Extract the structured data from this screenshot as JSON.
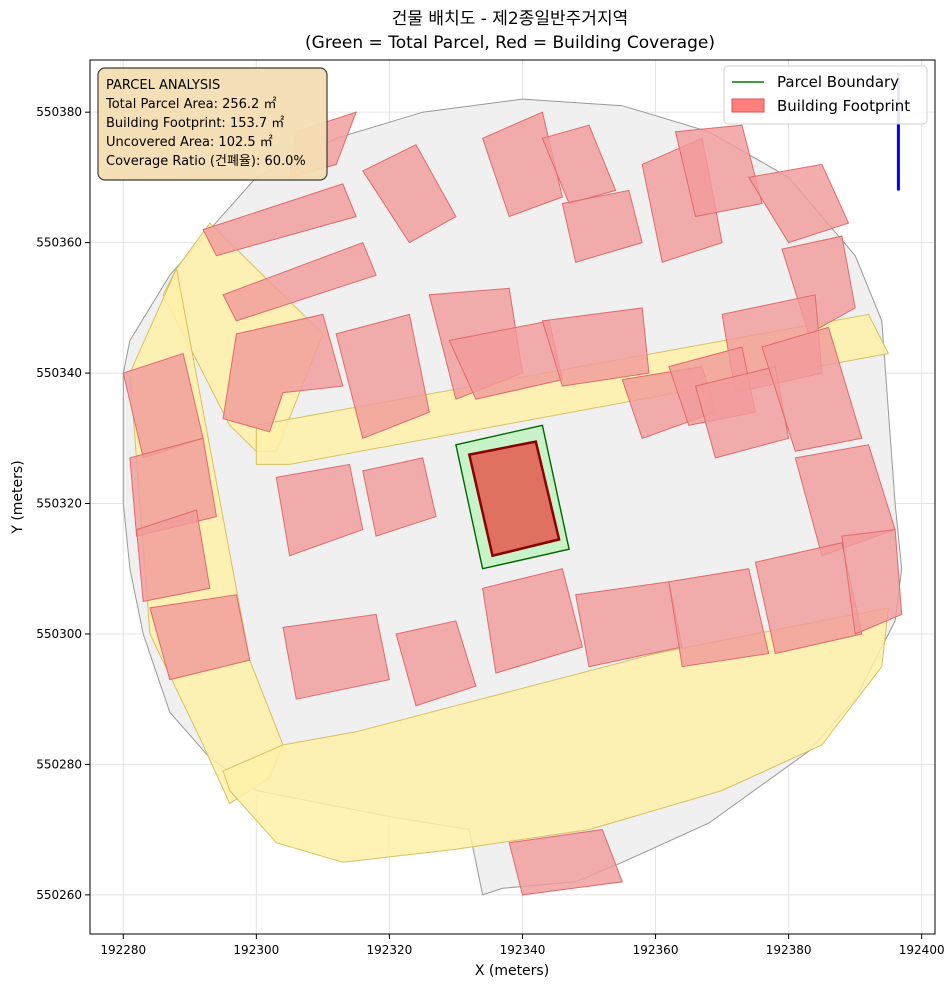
{
  "chart_data": {
    "type": "map",
    "title_line1": "건물 배치도 - 제2종일반주거지역",
    "title_line2": "(Green = Total Parcel, Red = Building Coverage)",
    "xlabel": "X (meters)",
    "ylabel": "Y (meters)",
    "xlim": [
      192275,
      192402
    ],
    "ylim": [
      550254,
      550388
    ],
    "xticks": [
      192280,
      192300,
      192320,
      192340,
      192360,
      192380,
      192400
    ],
    "yticks": [
      550260,
      550280,
      550300,
      550320,
      550340,
      550360,
      550380
    ],
    "grid": true,
    "legend": {
      "position": "top-right",
      "entries": [
        {
          "label": "Parcel Boundary",
          "kind": "line",
          "color": "#008000"
        },
        {
          "label": "Building Footprint",
          "kind": "patch",
          "color": "#ff7f7f"
        }
      ]
    },
    "info_box": {
      "heading": "PARCEL ANALYSIS",
      "lines": [
        "Total Parcel Area: 256.2 ㎡",
        "Building Footprint: 153.7 ㎡",
        "Uncovered Area: 102.5 ㎡",
        "Coverage Ratio (건폐율): 60.0%"
      ]
    },
    "target_parcel": [
      [
        192330,
        550329
      ],
      [
        192343,
        550332
      ],
      [
        192347,
        550313
      ],
      [
        192334,
        550310
      ]
    ],
    "target_building": [
      [
        192332,
        550327.5
      ],
      [
        192342,
        550329.5
      ],
      [
        192345.5,
        550314.5
      ],
      [
        192335.5,
        550312
      ]
    ],
    "north_arrow": [
      [
        192396.5,
        550368
      ],
      [
        192396.5,
        550386
      ]
    ],
    "study_area_outline": [
      [
        192281,
        550345
      ],
      [
        192287,
        550355
      ],
      [
        192293,
        550362
      ],
      [
        192300,
        550370
      ],
      [
        192312,
        550376
      ],
      [
        192325,
        550380
      ],
      [
        192340,
        550382
      ],
      [
        192355,
        550381
      ],
      [
        192368,
        550377
      ],
      [
        192380,
        550370
      ],
      [
        192390,
        550358
      ],
      [
        192394,
        550348
      ],
      [
        192396,
        550320
      ],
      [
        192397,
        550310
      ],
      [
        192396,
        550302
      ],
      [
        192390,
        550290
      ],
      [
        192383,
        550282
      ],
      [
        192368,
        550271
      ],
      [
        192355,
        550265
      ],
      [
        192348,
        550262
      ],
      [
        192337,
        550261
      ],
      [
        192334,
        550260
      ],
      [
        192332,
        550270
      ],
      [
        192320,
        550272
      ],
      [
        192310,
        550274
      ],
      [
        192300,
        550276
      ],
      [
        192293,
        550281
      ],
      [
        192287,
        550288
      ],
      [
        192283,
        550300
      ],
      [
        192281,
        550310
      ],
      [
        192280,
        550320
      ],
      [
        192280,
        550330
      ],
      [
        192280,
        550340
      ]
    ],
    "roads": [
      [
        [
          192288,
          550356
        ],
        [
          192293,
          550363
        ],
        [
          192310,
          550346
        ],
        [
          192303,
          550328
        ],
        [
          192300,
          550328
        ],
        [
          192296,
          550332
        ],
        [
          192286,
          550352
        ]
      ],
      [
        [
          192300,
          550332
        ],
        [
          192392,
          550349
        ],
        [
          192395,
          550343
        ],
        [
          192305,
          550326
        ],
        [
          192300,
          550326
        ]
      ],
      [
        [
          192288,
          550356
        ],
        [
          192299,
          550296
        ],
        [
          192304,
          550283
        ],
        [
          192302,
          550278
        ],
        [
          192296,
          550274
        ],
        [
          192292,
          550283
        ],
        [
          192284,
          550300
        ],
        [
          192281,
          550340
        ]
      ],
      [
        [
          192295,
          550279
        ],
        [
          192304,
          550283
        ],
        [
          192315,
          550285
        ],
        [
          192330,
          550289
        ],
        [
          192360,
          550297
        ],
        [
          192380,
          550301
        ],
        [
          192395,
          550304
        ],
        [
          192394,
          550295
        ],
        [
          192385,
          550283
        ],
        [
          192370,
          550276
        ],
        [
          192350,
          550270
        ],
        [
          192330,
          550267
        ],
        [
          192313,
          550265
        ],
        [
          192303,
          550268
        ],
        [
          192296,
          550276
        ]
      ]
    ],
    "buildings": [
      [
        [
          192292,
          550362
        ],
        [
          192313,
          550369
        ],
        [
          192315,
          550364
        ],
        [
          192294,
          550358
        ]
      ],
      [
        [
          192295,
          550352
        ],
        [
          192316,
          550360
        ],
        [
          192318,
          550355
        ],
        [
          192297,
          550348
        ]
      ],
      [
        [
          192297,
          550346
        ],
        [
          192310,
          550349
        ],
        [
          192313,
          550338
        ],
        [
          192304,
          550337
        ],
        [
          192302,
          550331
        ],
        [
          192295,
          550333
        ]
      ],
      [
        [
          192312,
          550346
        ],
        [
          192323,
          550349
        ],
        [
          192326,
          550334
        ],
        [
          192316,
          550330
        ]
      ],
      [
        [
          192326,
          550352
        ],
        [
          192338,
          550353
        ],
        [
          192340,
          550340
        ],
        [
          192330,
          550336
        ]
      ],
      [
        [
          192316,
          550371
        ],
        [
          192324,
          550375
        ],
        [
          192330,
          550364
        ],
        [
          192323,
          550360
        ]
      ],
      [
        [
          192306,
          550377
        ],
        [
          192315,
          550380
        ],
        [
          192312,
          550372
        ],
        [
          192305,
          550370
        ]
      ],
      [
        [
          192334,
          550376
        ],
        [
          192343,
          550380
        ],
        [
          192346,
          550367
        ],
        [
          192338,
          550364
        ]
      ],
      [
        [
          192343,
          550376
        ],
        [
          192350,
          550378
        ],
        [
          192354,
          550368
        ],
        [
          192347,
          550366
        ]
      ],
      [
        [
          192346,
          550366
        ],
        [
          192356,
          550368
        ],
        [
          192358,
          550360
        ],
        [
          192348,
          550357
        ]
      ],
      [
        [
          192329,
          550345
        ],
        [
          192344,
          550348
        ],
        [
          192346,
          550339
        ],
        [
          192333,
          550336
        ]
      ],
      [
        [
          192343,
          550348
        ],
        [
          192358,
          550350
        ],
        [
          192359,
          550340
        ],
        [
          192346,
          550338
        ]
      ],
      [
        [
          192358,
          550372
        ],
        [
          192367,
          550376
        ],
        [
          192370,
          550360
        ],
        [
          192361,
          550357
        ]
      ],
      [
        [
          192363,
          550377
        ],
        [
          192373,
          550378
        ],
        [
          192376,
          550366
        ],
        [
          192366,
          550364
        ]
      ],
      [
        [
          192374,
          550370
        ],
        [
          192385,
          550372
        ],
        [
          192389,
          550363
        ],
        [
          192380,
          550360
        ]
      ],
      [
        [
          192379,
          550359
        ],
        [
          192388,
          550361
        ],
        [
          192390,
          550350
        ],
        [
          192383,
          550346
        ]
      ],
      [
        [
          192370,
          550349
        ],
        [
          192384,
          550352
        ],
        [
          192385,
          550340
        ],
        [
          192372,
          550337
        ]
      ],
      [
        [
          192355,
          550339
        ],
        [
          192367,
          550341
        ],
        [
          192369,
          550334
        ],
        [
          192358,
          550330
        ]
      ],
      [
        [
          192362,
          550341
        ],
        [
          192373,
          550344
        ],
        [
          192375,
          550334
        ],
        [
          192365,
          550332
        ]
      ],
      [
        [
          192366,
          550338
        ],
        [
          192378,
          550341
        ],
        [
          192380,
          550330
        ],
        [
          192369,
          550327
        ]
      ],
      [
        [
          192376,
          550344
        ],
        [
          192386,
          550347
        ],
        [
          192391,
          550330
        ],
        [
          192381,
          550328
        ]
      ],
      [
        [
          192381,
          550327
        ],
        [
          192392,
          550329
        ],
        [
          192396,
          550316
        ],
        [
          192385,
          550312
        ]
      ],
      [
        [
          192280,
          550340
        ],
        [
          192289,
          550343
        ],
        [
          192292,
          550330
        ],
        [
          192283,
          550327
        ]
      ],
      [
        [
          192281,
          550327
        ],
        [
          192292,
          550330
        ],
        [
          192294,
          550318
        ],
        [
          192282,
          550315
        ]
      ],
      [
        [
          192282,
          550316
        ],
        [
          192291,
          550319
        ],
        [
          192293,
          550307
        ],
        [
          192283,
          550305
        ]
      ],
      [
        [
          192284,
          550304
        ],
        [
          192297,
          550306
        ],
        [
          192299,
          550296
        ],
        [
          192287,
          550293
        ]
      ],
      [
        [
          192303,
          550324
        ],
        [
          192314,
          550326
        ],
        [
          192316,
          550316
        ],
        [
          192305,
          550312
        ]
      ],
      [
        [
          192316,
          550325
        ],
        [
          192325,
          550327
        ],
        [
          192327,
          550318
        ],
        [
          192318,
          550315
        ]
      ],
      [
        [
          192304,
          550301
        ],
        [
          192318,
          550303
        ],
        [
          192320,
          550293
        ],
        [
          192306,
          550290
        ]
      ],
      [
        [
          192321,
          550300
        ],
        [
          192330,
          550302
        ],
        [
          192333,
          550292
        ],
        [
          192324,
          550289
        ]
      ],
      [
        [
          192334,
          550307
        ],
        [
          192346,
          550310
        ],
        [
          192349,
          550298
        ],
        [
          192336,
          550294
        ]
      ],
      [
        [
          192348,
          550306
        ],
        [
          192362,
          550308
        ],
        [
          192364,
          550298
        ],
        [
          192350,
          550295
        ]
      ],
      [
        [
          192362,
          550308
        ],
        [
          192374,
          550310
        ],
        [
          192377,
          550297
        ],
        [
          192364,
          550295
        ]
      ],
      [
        [
          192375,
          550311
        ],
        [
          192388,
          550314
        ],
        [
          192391,
          550300
        ],
        [
          192378,
          550297
        ]
      ],
      [
        [
          192388,
          550315
        ],
        [
          192396,
          550316
        ],
        [
          192397,
          550303
        ],
        [
          192390,
          550300
        ]
      ],
      [
        [
          192338,
          550268
        ],
        [
          192352,
          550270
        ],
        [
          192355,
          550262
        ],
        [
          192340,
          550260
        ]
      ]
    ]
  }
}
